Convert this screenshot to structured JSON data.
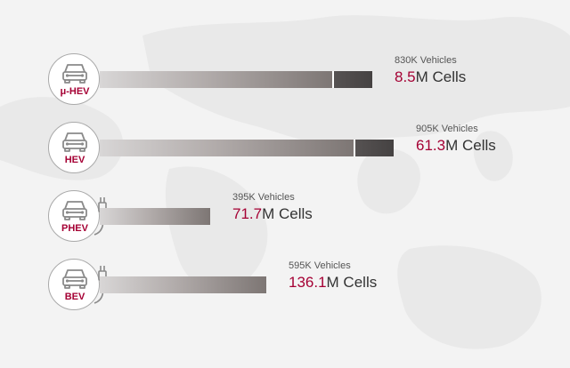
{
  "colors": {
    "accent": "#a50034",
    "bar_light": "#d8d6d6",
    "bar_dark": "#7d7674",
    "bar_extension": "#4a4646",
    "text": "#333333"
  },
  "icons": [
    "car-icon",
    "charging-plug-icon"
  ],
  "chart_data": {
    "type": "bar",
    "orientation": "horizontal",
    "categories": [
      "μ-HEV",
      "HEV",
      "PHEV",
      "BEV"
    ],
    "series": [
      {
        "values": [
          830,
          905,
          395,
          595
        ]
      },
      {
        "values": [
          8.5,
          61.3,
          71.7,
          136.1
        ]
      }
    ],
    "rows": [
      {
        "category": "μ-HEV",
        "vehicles_label": "830K Vehicles",
        "cells_value": "8.5",
        "cells_unit": "M Cells",
        "has_plug": false,
        "vehicles_k": 830,
        "cells_m": 8.5
      },
      {
        "category": "HEV",
        "vehicles_label": "905K Vehicles",
        "cells_value": "61.3",
        "cells_unit": "M Cells",
        "has_plug": false,
        "vehicles_k": 905,
        "cells_m": 61.3
      },
      {
        "category": "PHEV",
        "vehicles_label": "395K Vehicles",
        "cells_value": "71.7",
        "cells_unit": "M Cells",
        "has_plug": true,
        "vehicles_k": 395,
        "cells_m": 71.7
      },
      {
        "category": "BEV",
        "vehicles_label": "595K Vehicles",
        "cells_value": "136.1",
        "cells_unit": "M Cells",
        "has_plug": true,
        "vehicles_k": 595,
        "cells_m": 136.1
      }
    ],
    "title": "",
    "xlabel": "",
    "ylabel": "",
    "grid": false,
    "legend": "none"
  }
}
